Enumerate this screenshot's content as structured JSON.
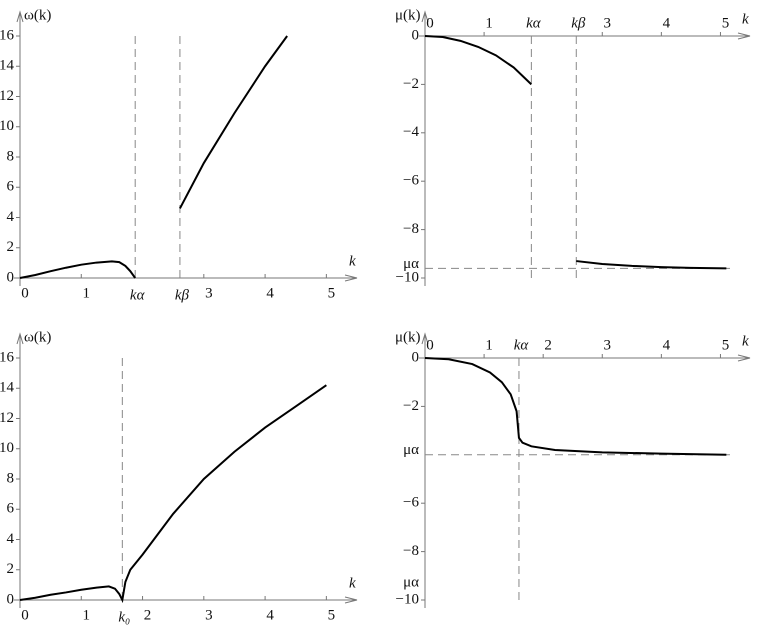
{
  "chart_data": [
    {
      "type": "line",
      "ylabel": "ω(k)",
      "xlabel": "k",
      "xlim": [
        0,
        5.5
      ],
      "ylim": [
        0,
        16
      ],
      "xticks": [
        0,
        1,
        3,
        4,
        5
      ],
      "yticks": [
        0,
        2,
        4,
        6,
        8,
        10,
        12,
        14,
        16
      ],
      "vlines": [
        {
          "value": 1.88,
          "label": "kα"
        },
        {
          "value": 2.61,
          "label": "kβ"
        }
      ],
      "series": [
        {
          "color": "#000000",
          "x": [
            0,
            0.25,
            0.5,
            0.75,
            1,
            1.25,
            1.5,
            1.62,
            1.72,
            1.8,
            1.88
          ],
          "values": [
            0,
            0.2,
            0.45,
            0.68,
            0.88,
            1.02,
            1.1,
            1.05,
            0.8,
            0.45,
            0
          ]
        },
        {
          "color": "#000000",
          "x": [
            2.61,
            3,
            3.5,
            4,
            4.36
          ],
          "values": [
            4.6,
            7.6,
            10.9,
            14,
            16
          ]
        }
      ]
    },
    {
      "type": "line",
      "ylabel": "μ(k)",
      "xlabel": "k",
      "xlim": [
        0,
        5.5
      ],
      "ylim": [
        -10,
        0
      ],
      "xticks": [
        0,
        1,
        3,
        4,
        5
      ],
      "yticks": [
        0,
        {
          "value": -2,
          "label": "−2"
        },
        {
          "value": -4,
          "label": "−4"
        },
        {
          "value": -6,
          "label": "−6"
        },
        {
          "value": -8,
          "label": "−8"
        },
        {
          "value": -10,
          "label": "−10"
        }
      ],
      "vlines": [
        {
          "value": 1.8,
          "label": "kα"
        },
        {
          "value": 2.56,
          "label": "kβ"
        }
      ],
      "hlines": [
        {
          "value": -9.6,
          "label": "μα"
        }
      ],
      "series": [
        {
          "color": "#000000",
          "x": [
            0,
            0.3,
            0.6,
            0.9,
            1.2,
            1.5,
            1.8
          ],
          "values": [
            0,
            -0.04,
            -0.2,
            -0.45,
            -0.8,
            -1.3,
            -2
          ]
        },
        {
          "color": "#000000",
          "x": [
            2.56,
            3,
            3.5,
            4,
            4.5,
            5.1
          ],
          "values": [
            -9.3,
            -9.42,
            -9.5,
            -9.55,
            -9.58,
            -9.6
          ]
        }
      ]
    },
    {
      "type": "line",
      "ylabel": "ω(k)",
      "xlabel": "k",
      "xlim": [
        0,
        5.5
      ],
      "ylim": [
        0,
        16
      ],
      "xticks": [
        0,
        1,
        2,
        3,
        4,
        5
      ],
      "yticks": [
        0,
        2,
        4,
        6,
        8,
        10,
        12,
        14,
        16
      ],
      "vlines": [
        {
          "value": 1.67,
          "label": "k₀"
        }
      ],
      "series": [
        {
          "color": "#000000",
          "x": [
            0,
            0.25,
            0.5,
            0.75,
            1,
            1.25,
            1.45,
            1.55,
            1.62,
            1.67,
            1.72,
            1.8,
            2,
            2.5,
            3,
            3.5,
            4,
            4.5,
            5
          ],
          "values": [
            0,
            0.15,
            0.35,
            0.5,
            0.68,
            0.82,
            0.9,
            0.75,
            0.4,
            0,
            1.2,
            2,
            3,
            5.7,
            8,
            9.8,
            11.4,
            12.8,
            14.2
          ]
        }
      ]
    },
    {
      "type": "line",
      "ylabel": "μ(k)",
      "xlabel": "k",
      "xlim": [
        0,
        5.5
      ],
      "ylim": [
        -10,
        0
      ],
      "xticks": [
        0,
        1,
        2,
        3,
        4,
        5
      ],
      "yticks": [
        0,
        {
          "value": -2,
          "label": "−2"
        },
        {
          "value": -6,
          "label": "−6"
        },
        {
          "value": -8,
          "label": "−8"
        },
        {
          "value": -10,
          "label": "−10"
        }
      ],
      "vlines": [
        {
          "value": 1.59,
          "label": "kα"
        }
      ],
      "hlines": [
        {
          "value": -4,
          "label": "μα"
        }
      ],
      "annotations": [
        {
          "text": "μα",
          "y": -9.3
        }
      ],
      "series": [
        {
          "color": "#000000",
          "x": [
            0,
            0.4,
            0.8,
            1.1,
            1.3,
            1.45,
            1.55,
            1.59,
            1.65,
            1.8,
            2.2,
            3,
            4,
            5.1
          ],
          "values": [
            0,
            -0.05,
            -0.25,
            -0.6,
            -1,
            -1.5,
            -2.2,
            -3.3,
            -3.5,
            -3.65,
            -3.8,
            -3.9,
            -3.95,
            -4
          ]
        }
      ]
    }
  ]
}
